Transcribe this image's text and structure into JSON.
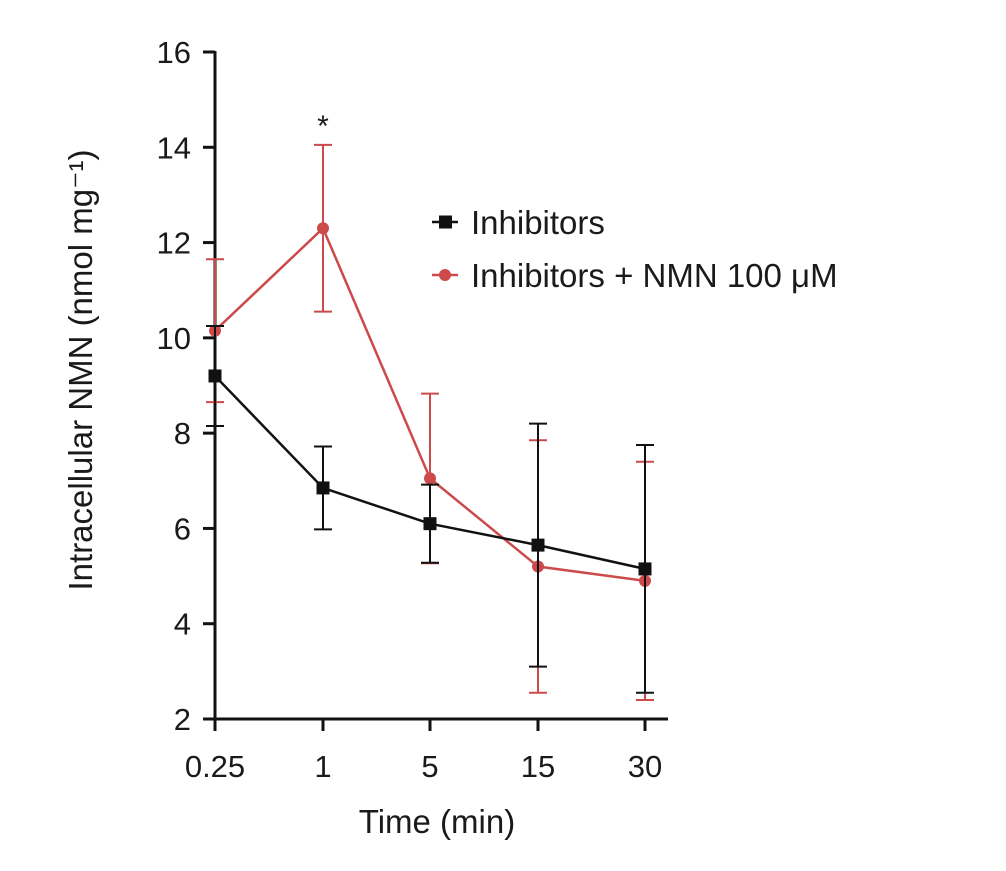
{
  "chart_data": {
    "type": "line",
    "xlabel": "Time (min)",
    "ylabel": "Intracellular NMN (nmol mg⁻¹)",
    "categories": [
      "0.25",
      "1",
      "5",
      "15",
      "30"
    ],
    "ylim": [
      2,
      16
    ],
    "yticks": [
      2,
      4,
      6,
      8,
      10,
      12,
      14,
      16
    ],
    "grid": false,
    "legend_position": "top-right",
    "annotations": [
      {
        "text": "*",
        "category": "1",
        "y": 14.7
      }
    ],
    "series": [
      {
        "name": "Inhibitors",
        "color": "#111111",
        "marker": "square",
        "values": [
          9.2,
          6.85,
          6.1,
          5.65,
          5.15
        ],
        "error": [
          1.05,
          0.87,
          0.82,
          2.55,
          2.6
        ]
      },
      {
        "name": "Inhibitors + NMN 100 μM",
        "color": "#cc4a4a",
        "marker": "circle",
        "values": [
          10.15,
          12.3,
          7.05,
          5.2,
          4.9
        ],
        "error": [
          1.5,
          1.75,
          1.78,
          2.65,
          2.5
        ]
      }
    ]
  }
}
